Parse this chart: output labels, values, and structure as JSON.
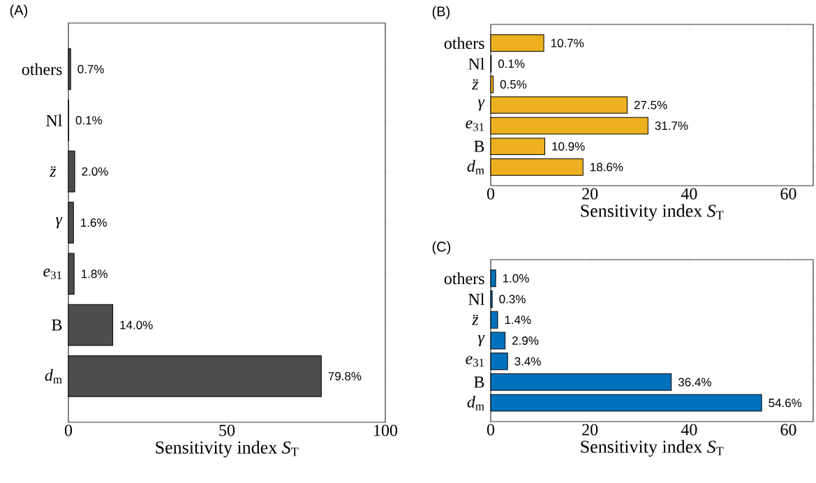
{
  "chart_data": [
    {
      "type": "bar",
      "orientation": "horizontal",
      "title": "(A)",
      "xlabel": "Sensitivity index *S*$_{T}$",
      "categories": [
        "others",
        "Nl",
        "*z̈*",
        "*γ*",
        "*e*$_{31}$",
        "B",
        "*d*$_{m}$"
      ],
      "values": [
        0.7,
        0.1,
        2.0,
        1.6,
        1.8,
        14.0,
        79.8
      ],
      "value_labels": [
        "0.7%",
        "0.1%",
        "2.0%",
        "1.6%",
        "1.8%",
        "14.0%",
        "79.8%"
      ],
      "color": "#4d4d4d",
      "xlim": [
        0,
        100
      ],
      "xticks": [
        0,
        50,
        100
      ]
    },
    {
      "type": "bar",
      "orientation": "horizontal",
      "title": "(B)",
      "xlabel": "Sensitivity index *S*$_{T}$",
      "categories": [
        "others",
        "Nl",
        "*z̈*",
        "*γ*",
        "*e*$_{31}$",
        "B",
        "*d*$_{m}$"
      ],
      "values": [
        10.7,
        0.1,
        0.5,
        27.5,
        31.7,
        10.9,
        18.6
      ],
      "value_labels": [
        "10.7%",
        "0.1%",
        "0.5%",
        "27.5%",
        "31.7%",
        "10.9%",
        "18.6%"
      ],
      "color": "#edb120",
      "xlim": [
        0,
        65
      ],
      "xticks": [
        0,
        20,
        40,
        60
      ]
    },
    {
      "type": "bar",
      "orientation": "horizontal",
      "title": "(C)",
      "xlabel": "Sensitivity index *S*$_{T}$",
      "categories": [
        "others",
        "Nl",
        "*z̈*",
        "*γ*",
        "*e*$_{31}$",
        "B",
        "*d*$_{m}$"
      ],
      "values": [
        1.0,
        0.3,
        1.4,
        2.9,
        3.4,
        36.4,
        54.6
      ],
      "value_labels": [
        "1.0%",
        "0.3%",
        "1.4%",
        "2.9%",
        "3.4%",
        "36.4%",
        "54.6%"
      ],
      "color": "#0072bd",
      "xlim": [
        0,
        65
      ],
      "xticks": [
        0,
        20,
        40,
        60
      ]
    }
  ]
}
